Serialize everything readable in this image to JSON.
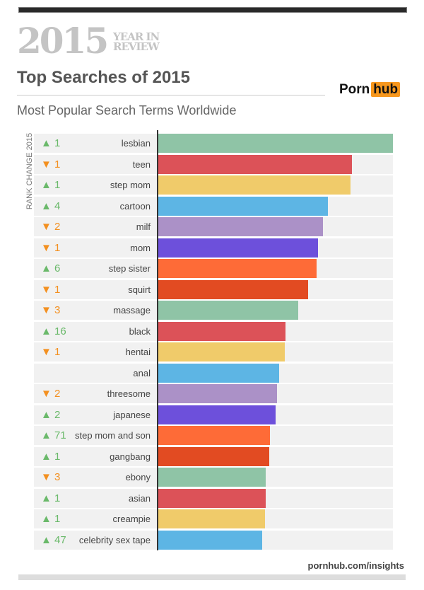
{
  "header": {
    "year": "2015",
    "tag_line1": "YEAR IN",
    "tag_line2": "REVIEW",
    "title": "Top Searches of 2015",
    "subtitle": "Most Popular Search Terms Worldwide",
    "logo_part1": "Porn",
    "logo_part2": "hub"
  },
  "footer": {
    "url": "pornhub.com/insights"
  },
  "chart_data": {
    "type": "bar",
    "orientation": "horizontal",
    "title": "Top Searches of 2015",
    "subtitle": "Most Popular Search Terms Worldwide",
    "rank_change_label": "RANK CHANGE 2015",
    "value_unit": "relative popularity (% of top term, estimated from bar length)",
    "categories": [
      "lesbian",
      "teen",
      "step mom",
      "cartoon",
      "milf",
      "mom",
      "step sister",
      "squirt",
      "massage",
      "black",
      "hentai",
      "anal",
      "threesome",
      "japanese",
      "step mom and son",
      "gangbang",
      "ebony",
      "asian",
      "creampie",
      "celebrity sex tape"
    ],
    "values": [
      100,
      82.5,
      81.9,
      72.3,
      70.2,
      68.1,
      67.5,
      63.9,
      59.6,
      54.2,
      53.9,
      51.5,
      50.6,
      50.0,
      47.6,
      47.3,
      45.8,
      45.8,
      45.5,
      44.3
    ],
    "rank_change": [
      {
        "dir": "up",
        "value": "1"
      },
      {
        "dir": "down",
        "value": "1"
      },
      {
        "dir": "up",
        "value": "1"
      },
      {
        "dir": "up",
        "value": "4"
      },
      {
        "dir": "down",
        "value": "2"
      },
      {
        "dir": "down",
        "value": "1"
      },
      {
        "dir": "up",
        "value": "6"
      },
      {
        "dir": "down",
        "value": "1"
      },
      {
        "dir": "down",
        "value": "3"
      },
      {
        "dir": "up",
        "value": "16"
      },
      {
        "dir": "down",
        "value": "1"
      },
      {
        "dir": "none",
        "value": ""
      },
      {
        "dir": "down",
        "value": "2"
      },
      {
        "dir": "up",
        "value": "2"
      },
      {
        "dir": "up",
        "value": "71"
      },
      {
        "dir": "up",
        "value": "1"
      },
      {
        "dir": "down",
        "value": "3"
      },
      {
        "dir": "up",
        "value": "1"
      },
      {
        "dir": "up",
        "value": "1"
      },
      {
        "dir": "up",
        "value": "47"
      }
    ],
    "colors": [
      "#8fc4a6",
      "#dc5258",
      "#f0cb6a",
      "#5db5e4",
      "#ab91c7",
      "#6d50db",
      "#fe6b37",
      "#e24b22"
    ],
    "up_color": "#6ab96a",
    "down_color": "#f39020",
    "grid": false,
    "legend": "none"
  }
}
